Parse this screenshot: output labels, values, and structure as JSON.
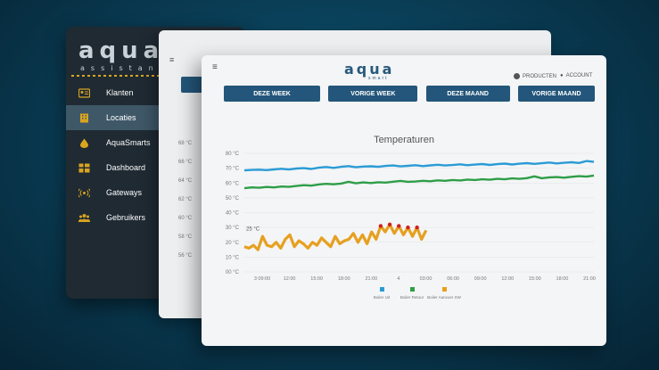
{
  "sidebar": {
    "logo": "aqua",
    "logo_sub": "assistant",
    "items": [
      {
        "label": "Klanten",
        "icon": "id-card-icon",
        "active": false
      },
      {
        "label": "Locaties",
        "icon": "building-icon",
        "active": true
      },
      {
        "label": "AquaSmarts",
        "icon": "droplet-flame-icon",
        "active": false
      },
      {
        "label": "Dashboard",
        "icon": "dashboard-grid-icon",
        "active": false
      },
      {
        "label": "Gateways",
        "icon": "wifi-signal-icon",
        "active": false
      },
      {
        "label": "Gebruikers",
        "icon": "users-group-icon",
        "active": false
      }
    ]
  },
  "middle": {
    "hamburger": "≡",
    "axis_ticks": [
      "68 °C",
      "66 °C",
      "64 °C",
      "62 °C",
      "60 °C",
      "58 °C",
      "56 °C"
    ]
  },
  "header": {
    "hamburger": "≡",
    "logo": "aqua",
    "logo_sub": "smart",
    "producten": "PRODUCTEN",
    "account": "ACCOUNT"
  },
  "periods": [
    "DEZE WEEK",
    "VORIGE WEEK",
    "DEZE MAAND",
    "VORIGE MAAND"
  ],
  "colors": {
    "accent": "#23567a",
    "series_blue": "#2a9bd6",
    "series_green": "#2e9e48",
    "series_orange": "#e6a020",
    "alarm": "#cc2222"
  },
  "chart_data": {
    "type": "line",
    "title": "Temperaturen",
    "y_ticks": [
      "80 °C",
      "70 °C",
      "60 °C",
      "50 °C",
      "40 °C",
      "30 °C",
      "20 °C",
      "10 °C",
      "00 °C"
    ],
    "ylim": [
      0,
      80
    ],
    "x_ticks": [
      "3 09:00",
      "12:00",
      "15:00",
      "18:00",
      "21:00",
      "4",
      "03:00",
      "06:00",
      "09:00",
      "12:00",
      "15:00",
      "18:00",
      "21:00"
    ],
    "series": [
      {
        "name": "Boiler Uit",
        "color": "#2a9bd6",
        "values": [
          68.5,
          68.8,
          69.0,
          68.7,
          69.2,
          69.6,
          69.1,
          69.8,
          70.0,
          69.5,
          70.3,
          70.8,
          70.2,
          70.9,
          71.4,
          70.6,
          71.1,
          71.3,
          70.9,
          71.5,
          71.8,
          71.2,
          71.6,
          72.0,
          71.4,
          71.9,
          72.3,
          71.8,
          72.1,
          72.6,
          72.0,
          72.4,
          72.8,
          72.2,
          72.7,
          73.1,
          72.5,
          73.0,
          73.4,
          72.9,
          73.3,
          73.8,
          73.2,
          73.6,
          74.0,
          73.5,
          74.8,
          74.2
        ]
      },
      {
        "name": "Boiler Retour",
        "color": "#2e9e48",
        "values": [
          56.5,
          57.0,
          56.8,
          57.3,
          57.0,
          57.6,
          57.4,
          58.0,
          58.5,
          58.2,
          59.0,
          59.4,
          59.1,
          59.6,
          60.8,
          59.8,
          60.4,
          60.0,
          60.5,
          60.3,
          60.9,
          61.4,
          60.8,
          61.0,
          61.5,
          61.2,
          61.8,
          61.5,
          62.0,
          61.7,
          62.3,
          62.0,
          62.5,
          62.2,
          62.8,
          62.5,
          63.1,
          62.8,
          63.3,
          64.5,
          63.2,
          63.8,
          64.0,
          63.6,
          64.2,
          64.6,
          64.3,
          65.0
        ]
      },
      {
        "name": "Boiler Aanvoer SW",
        "color": "#e6a020",
        "values": [
          17,
          16,
          18,
          15,
          24,
          18,
          17,
          20,
          16,
          22,
          25,
          17,
          21,
          19,
          16,
          20,
          18,
          23,
          20,
          17,
          24,
          19,
          21,
          22,
          26,
          20,
          25,
          19,
          27,
          22,
          31,
          27,
          32,
          26,
          31,
          25,
          30,
          24,
          30,
          22,
          28
        ]
      }
    ],
    "annotation": "25 °C",
    "legend_position": "bottom",
    "grid": true
  }
}
